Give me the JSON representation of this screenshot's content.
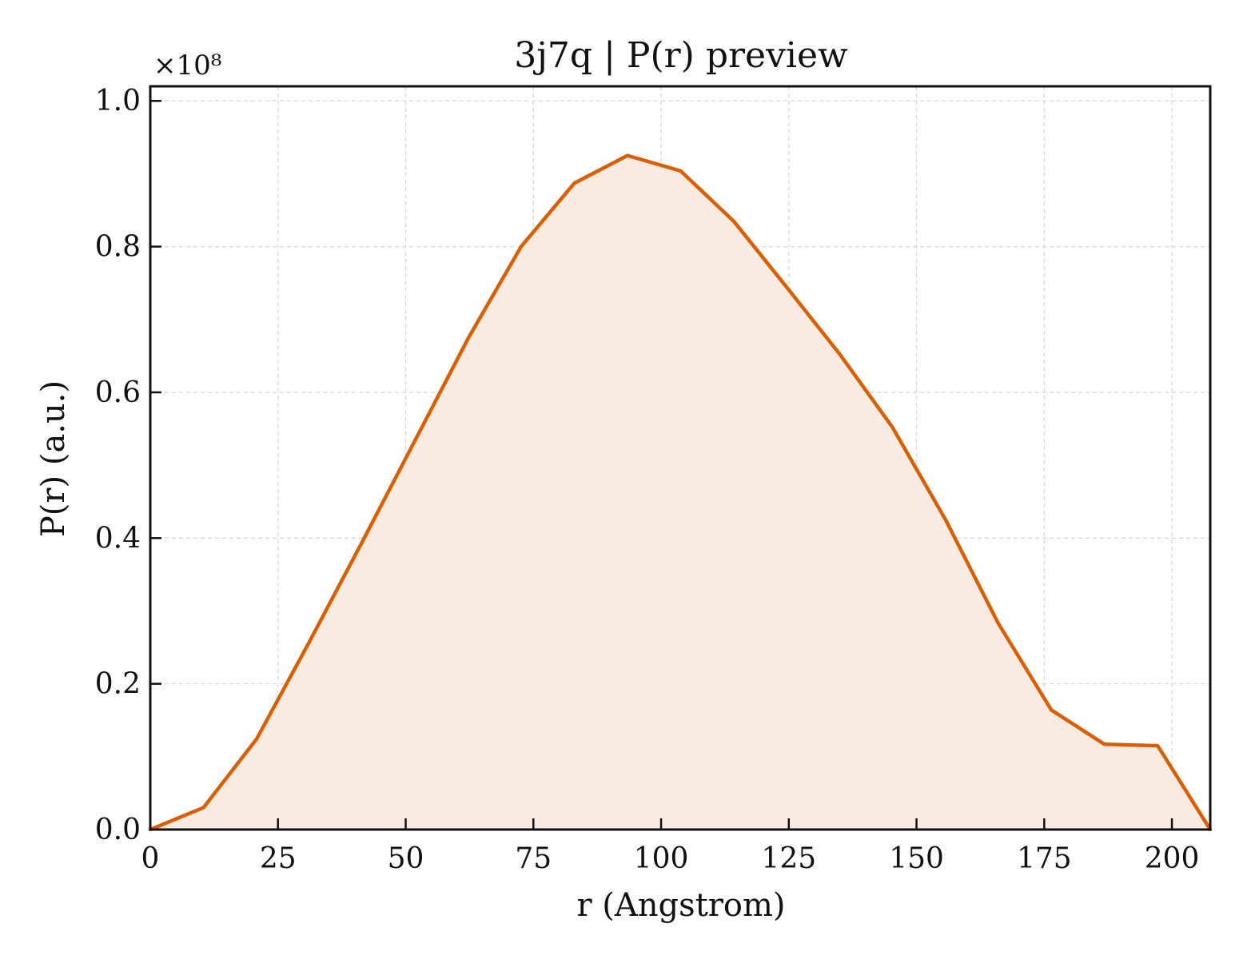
{
  "chart_data": {
    "type": "area",
    "title": "3j7q | P(r) preview",
    "xlabel": "r (Angstrom)",
    "ylabel": "P(r) (a.u.)",
    "y_multiplier": "×10⁸",
    "xlim": [
      0,
      207.5
    ],
    "ylim": [
      0,
      1.02
    ],
    "x_ticks": [
      0,
      25,
      50,
      75,
      100,
      125,
      150,
      175,
      200
    ],
    "x_tick_labels": [
      "0",
      "25",
      "50",
      "75",
      "100",
      "125",
      "150",
      "175",
      "200"
    ],
    "y_ticks": [
      0.0,
      0.2,
      0.4,
      0.6,
      0.8,
      1.0
    ],
    "y_tick_labels": [
      "0.0",
      "0.2",
      "0.4",
      "0.6",
      "0.8",
      "1.0"
    ],
    "grid": true,
    "line_color": "#d95f02",
    "fill_color": "#f9ebe1",
    "series": [
      {
        "x": [
          0,
          10.4,
          20.8,
          31.1,
          41.5,
          51.9,
          62.3,
          72.6,
          83.0,
          93.4,
          103.8,
          114.2,
          124.5,
          134.9,
          145.3,
          155.7,
          166.0,
          176.4,
          186.8,
          197.2,
          207.5
        ],
        "values": [
          0.0,
          0.03,
          0.124,
          0.257,
          0.395,
          0.535,
          0.675,
          0.8,
          0.887,
          0.925,
          0.904,
          0.835,
          0.745,
          0.653,
          0.552,
          0.425,
          0.283,
          0.164,
          0.117,
          0.115,
          0.0
        ]
      }
    ]
  }
}
